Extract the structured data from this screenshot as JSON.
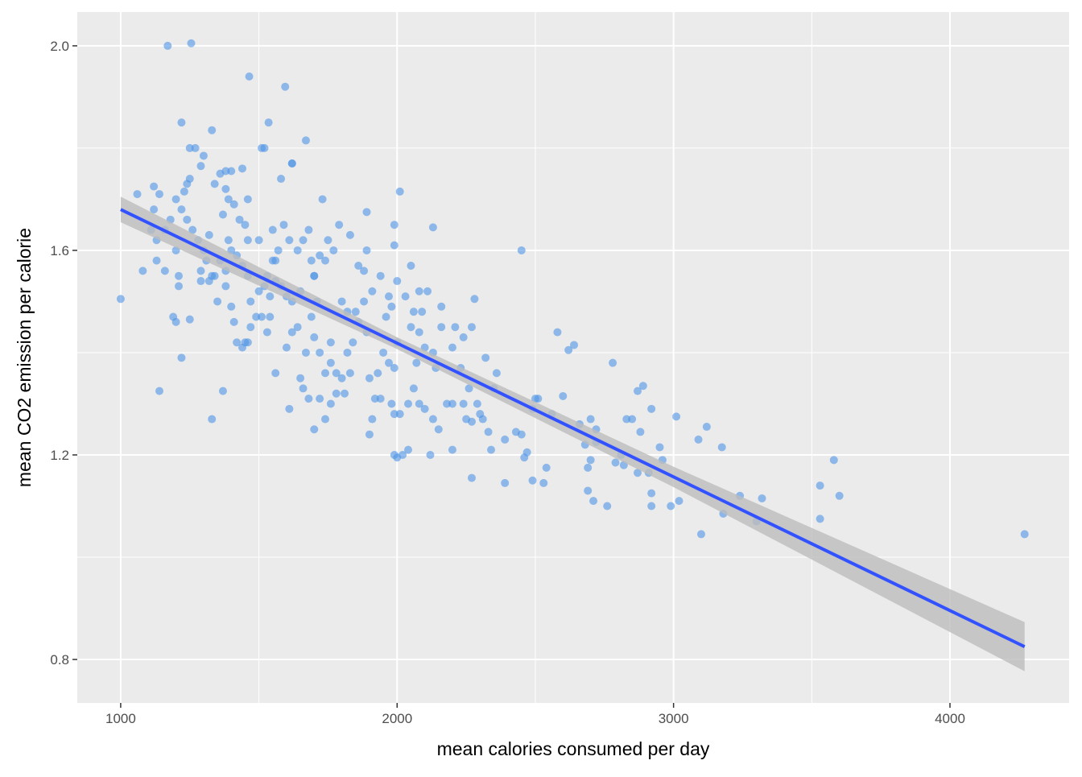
{
  "chart_data": {
    "type": "scatter",
    "x_label": "mean calories consumed per day",
    "y_label": "mean CO2 emission per calorie",
    "xlim": [
      843,
      4431
    ],
    "ylim": [
      0.715,
      2.066
    ],
    "xticks": [
      1000,
      2000,
      3000,
      4000
    ],
    "yticks": [
      {
        "value": 0.8,
        "label": "0.8"
      },
      {
        "value": 1.2,
        "label": "1.2"
      },
      {
        "value": 1.6,
        "label": "1.6"
      },
      {
        "value": 2.0,
        "label": "2.0"
      }
    ],
    "x_minor_ticks": [
      1500,
      2500,
      3500
    ],
    "y_minor_ticks": [
      1.0,
      1.4,
      1.8
    ],
    "grid": true,
    "point_color": "#4f95e6",
    "line_color": "#3352ff",
    "band_color": "#bdbdbd",
    "fit": {
      "x": [
        1000,
        4270
      ],
      "y": [
        1.68,
        0.825
      ]
    },
    "ci": {
      "x": [
        1000,
        2000,
        3000,
        4270
      ],
      "lower": [
        1.655,
        1.407,
        1.137,
        0.777
      ],
      "upper": [
        1.705,
        1.43,
        1.177,
        0.873
      ]
    },
    "x": [
      1000,
      1170,
      1255,
      1465,
      1595,
      1220,
      1330,
      1535,
      4270,
      3580,
      3600,
      3530,
      3530,
      3100,
      3320,
      3240,
      3300,
      3180,
      3175,
      3120,
      3090,
      3010,
      3020,
      2990,
      2960,
      2950,
      2920,
      2920,
      2920,
      2890,
      2870,
      2880,
      2780,
      2640,
      2620,
      2580,
      2450,
      2280,
      2010,
      1890,
      2130,
      1730,
      1620,
      1670,
      1520,
      1510,
      1400,
      1440,
      1380,
      1060,
      1120,
      1140,
      1230,
      1240,
      1270,
      1250,
      1290,
      1300,
      1140,
      1370,
      1330,
      1220,
      1160,
      1080,
      1250,
      1190,
      1200,
      2000,
      1990,
      2020,
      2040,
      2120,
      2200,
      2270,
      2390,
      2490,
      2530,
      2540,
      2460,
      2470,
      2690,
      2710,
      2760,
      2690,
      2700,
      2680,
      2720,
      2700,
      2720,
      2790,
      2820,
      2830,
      2850,
      2870,
      2910,
      2810,
      2660,
      2600,
      2560,
      2510,
      2500,
      2490,
      2450,
      2430,
      2390,
      2350,
      2360,
      2320,
      2330,
      2340,
      2300,
      2310,
      2290,
      2270,
      2250,
      2240,
      2200,
      2180,
      2200,
      2210,
      2240,
      2270,
      2230,
      2260,
      2160,
      2140,
      2130,
      2100,
      2080,
      2050,
      2060,
      2030,
      2050,
      2080,
      2110,
      2160,
      2090,
      2070,
      2060,
      2080,
      2100,
      2130,
      2150,
      2040,
      2010,
      1990,
      1980,
      1940,
      1920,
      1910,
      1900,
      1900,
      1930,
      1950,
      1970,
      1990,
      2000,
      1960,
      1980,
      1970,
      2000,
      1990,
      1990,
      1940,
      1910,
      1880,
      1890,
      1860,
      1840,
      1820,
      1800,
      1820,
      1850,
      1860,
      1890,
      1880,
      1830,
      1790,
      1770,
      1750,
      1740,
      1720,
      1700,
      1690,
      1710,
      1690,
      1700,
      1720,
      1760,
      1760,
      1740,
      1780,
      1780,
      1800,
      1830,
      1810,
      1760,
      1740,
      1700,
      1720,
      1680,
      1660,
      1650,
      1670,
      1640,
      1620,
      1600,
      1610,
      1560,
      1530,
      1540,
      1510,
      1490,
      1470,
      1450,
      1470,
      1500,
      1520,
      1530,
      1550,
      1570,
      1590,
      1610,
      1640,
      1660,
      1680,
      1700,
      1650,
      1620,
      1600,
      1580,
      1560,
      1540,
      1460,
      1440,
      1420,
      1400,
      1390,
      1380,
      1360,
      1340,
      1320,
      1310,
      1300,
      1280,
      1260,
      1240,
      1220,
      1200,
      1180,
      1160,
      1130,
      1110,
      1120,
      1130,
      1210,
      1200,
      1210,
      1290,
      1350,
      1380,
      1400,
      1410,
      1420,
      1440,
      1460,
      1370,
      1390,
      1410,
      1430,
      1450,
      1460,
      1380,
      1340,
      1360,
      1460,
      1500,
      1550,
      1580,
      1620,
      1560,
      1250,
      1320,
      1330,
      1290
    ],
    "values": [
      1.505,
      2.0,
      2.005,
      1.94,
      1.92,
      1.85,
      1.835,
      1.85,
      1.045,
      1.19,
      1.12,
      1.14,
      1.075,
      1.045,
      1.115,
      1.12,
      1.07,
      1.085,
      1.215,
      1.255,
      1.23,
      1.275,
      1.11,
      1.1,
      1.19,
      1.215,
      1.29,
      1.1,
      1.125,
      1.335,
      1.325,
      1.245,
      1.38,
      1.415,
      1.405,
      1.44,
      1.6,
      1.505,
      1.715,
      1.675,
      1.645,
      1.7,
      1.77,
      1.815,
      1.8,
      1.8,
      1.755,
      1.76,
      1.755,
      1.71,
      1.725,
      1.71,
      1.715,
      1.73,
      1.8,
      1.8,
      1.765,
      1.785,
      1.325,
      1.325,
      1.27,
      1.39,
      1.56,
      1.56,
      1.465,
      1.47,
      1.46,
      1.195,
      1.2,
      1.2,
      1.21,
      1.2,
      1.21,
      1.155,
      1.145,
      1.15,
      1.145,
      1.175,
      1.195,
      1.205,
      1.13,
      1.11,
      1.1,
      1.175,
      1.19,
      1.22,
      1.225,
      1.27,
      1.25,
      1.185,
      1.18,
      1.27,
      1.27,
      1.165,
      1.165,
      1.2,
      1.26,
      1.315,
      1.28,
      1.31,
      1.31,
      1.29,
      1.24,
      1.245,
      1.23,
      1.33,
      1.36,
      1.39,
      1.245,
      1.21,
      1.28,
      1.27,
      1.3,
      1.265,
      1.27,
      1.3,
      1.3,
      1.3,
      1.41,
      1.45,
      1.43,
      1.45,
      1.37,
      1.33,
      1.45,
      1.37,
      1.4,
      1.41,
      1.44,
      1.45,
      1.48,
      1.51,
      1.57,
      1.52,
      1.52,
      1.49,
      1.48,
      1.38,
      1.33,
      1.3,
      1.29,
      1.27,
      1.25,
      1.3,
      1.28,
      1.28,
      1.3,
      1.31,
      1.31,
      1.27,
      1.24,
      1.35,
      1.36,
      1.4,
      1.38,
      1.37,
      1.42,
      1.47,
      1.49,
      1.51,
      1.54,
      1.65,
      1.61,
      1.55,
      1.52,
      1.5,
      1.44,
      1.46,
      1.42,
      1.4,
      1.5,
      1.48,
      1.48,
      1.57,
      1.6,
      1.56,
      1.63,
      1.65,
      1.6,
      1.62,
      1.58,
      1.59,
      1.55,
      1.58,
      1.5,
      1.47,
      1.43,
      1.4,
      1.42,
      1.38,
      1.36,
      1.36,
      1.32,
      1.35,
      1.36,
      1.32,
      1.3,
      1.27,
      1.25,
      1.31,
      1.31,
      1.33,
      1.35,
      1.4,
      1.45,
      1.44,
      1.41,
      1.29,
      1.36,
      1.44,
      1.47,
      1.47,
      1.47,
      1.45,
      1.42,
      1.5,
      1.52,
      1.53,
      1.55,
      1.58,
      1.6,
      1.65,
      1.62,
      1.6,
      1.62,
      1.64,
      1.55,
      1.52,
      1.5,
      1.51,
      1.53,
      1.54,
      1.51,
      1.55,
      1.57,
      1.59,
      1.6,
      1.62,
      1.56,
      1.58,
      1.55,
      1.54,
      1.58,
      1.6,
      1.62,
      1.64,
      1.66,
      1.68,
      1.7,
      1.66,
      1.64,
      1.62,
      1.64,
      1.68,
      1.58,
      1.55,
      1.6,
      1.53,
      1.56,
      1.5,
      1.53,
      1.49,
      1.46,
      1.42,
      1.41,
      1.42,
      1.67,
      1.7,
      1.69,
      1.66,
      1.65,
      1.7,
      1.72,
      1.73,
      1.75,
      1.62,
      1.62,
      1.64,
      1.74,
      1.77,
      1.58,
      1.74,
      1.63,
      1.55,
      1.54
    ]
  }
}
